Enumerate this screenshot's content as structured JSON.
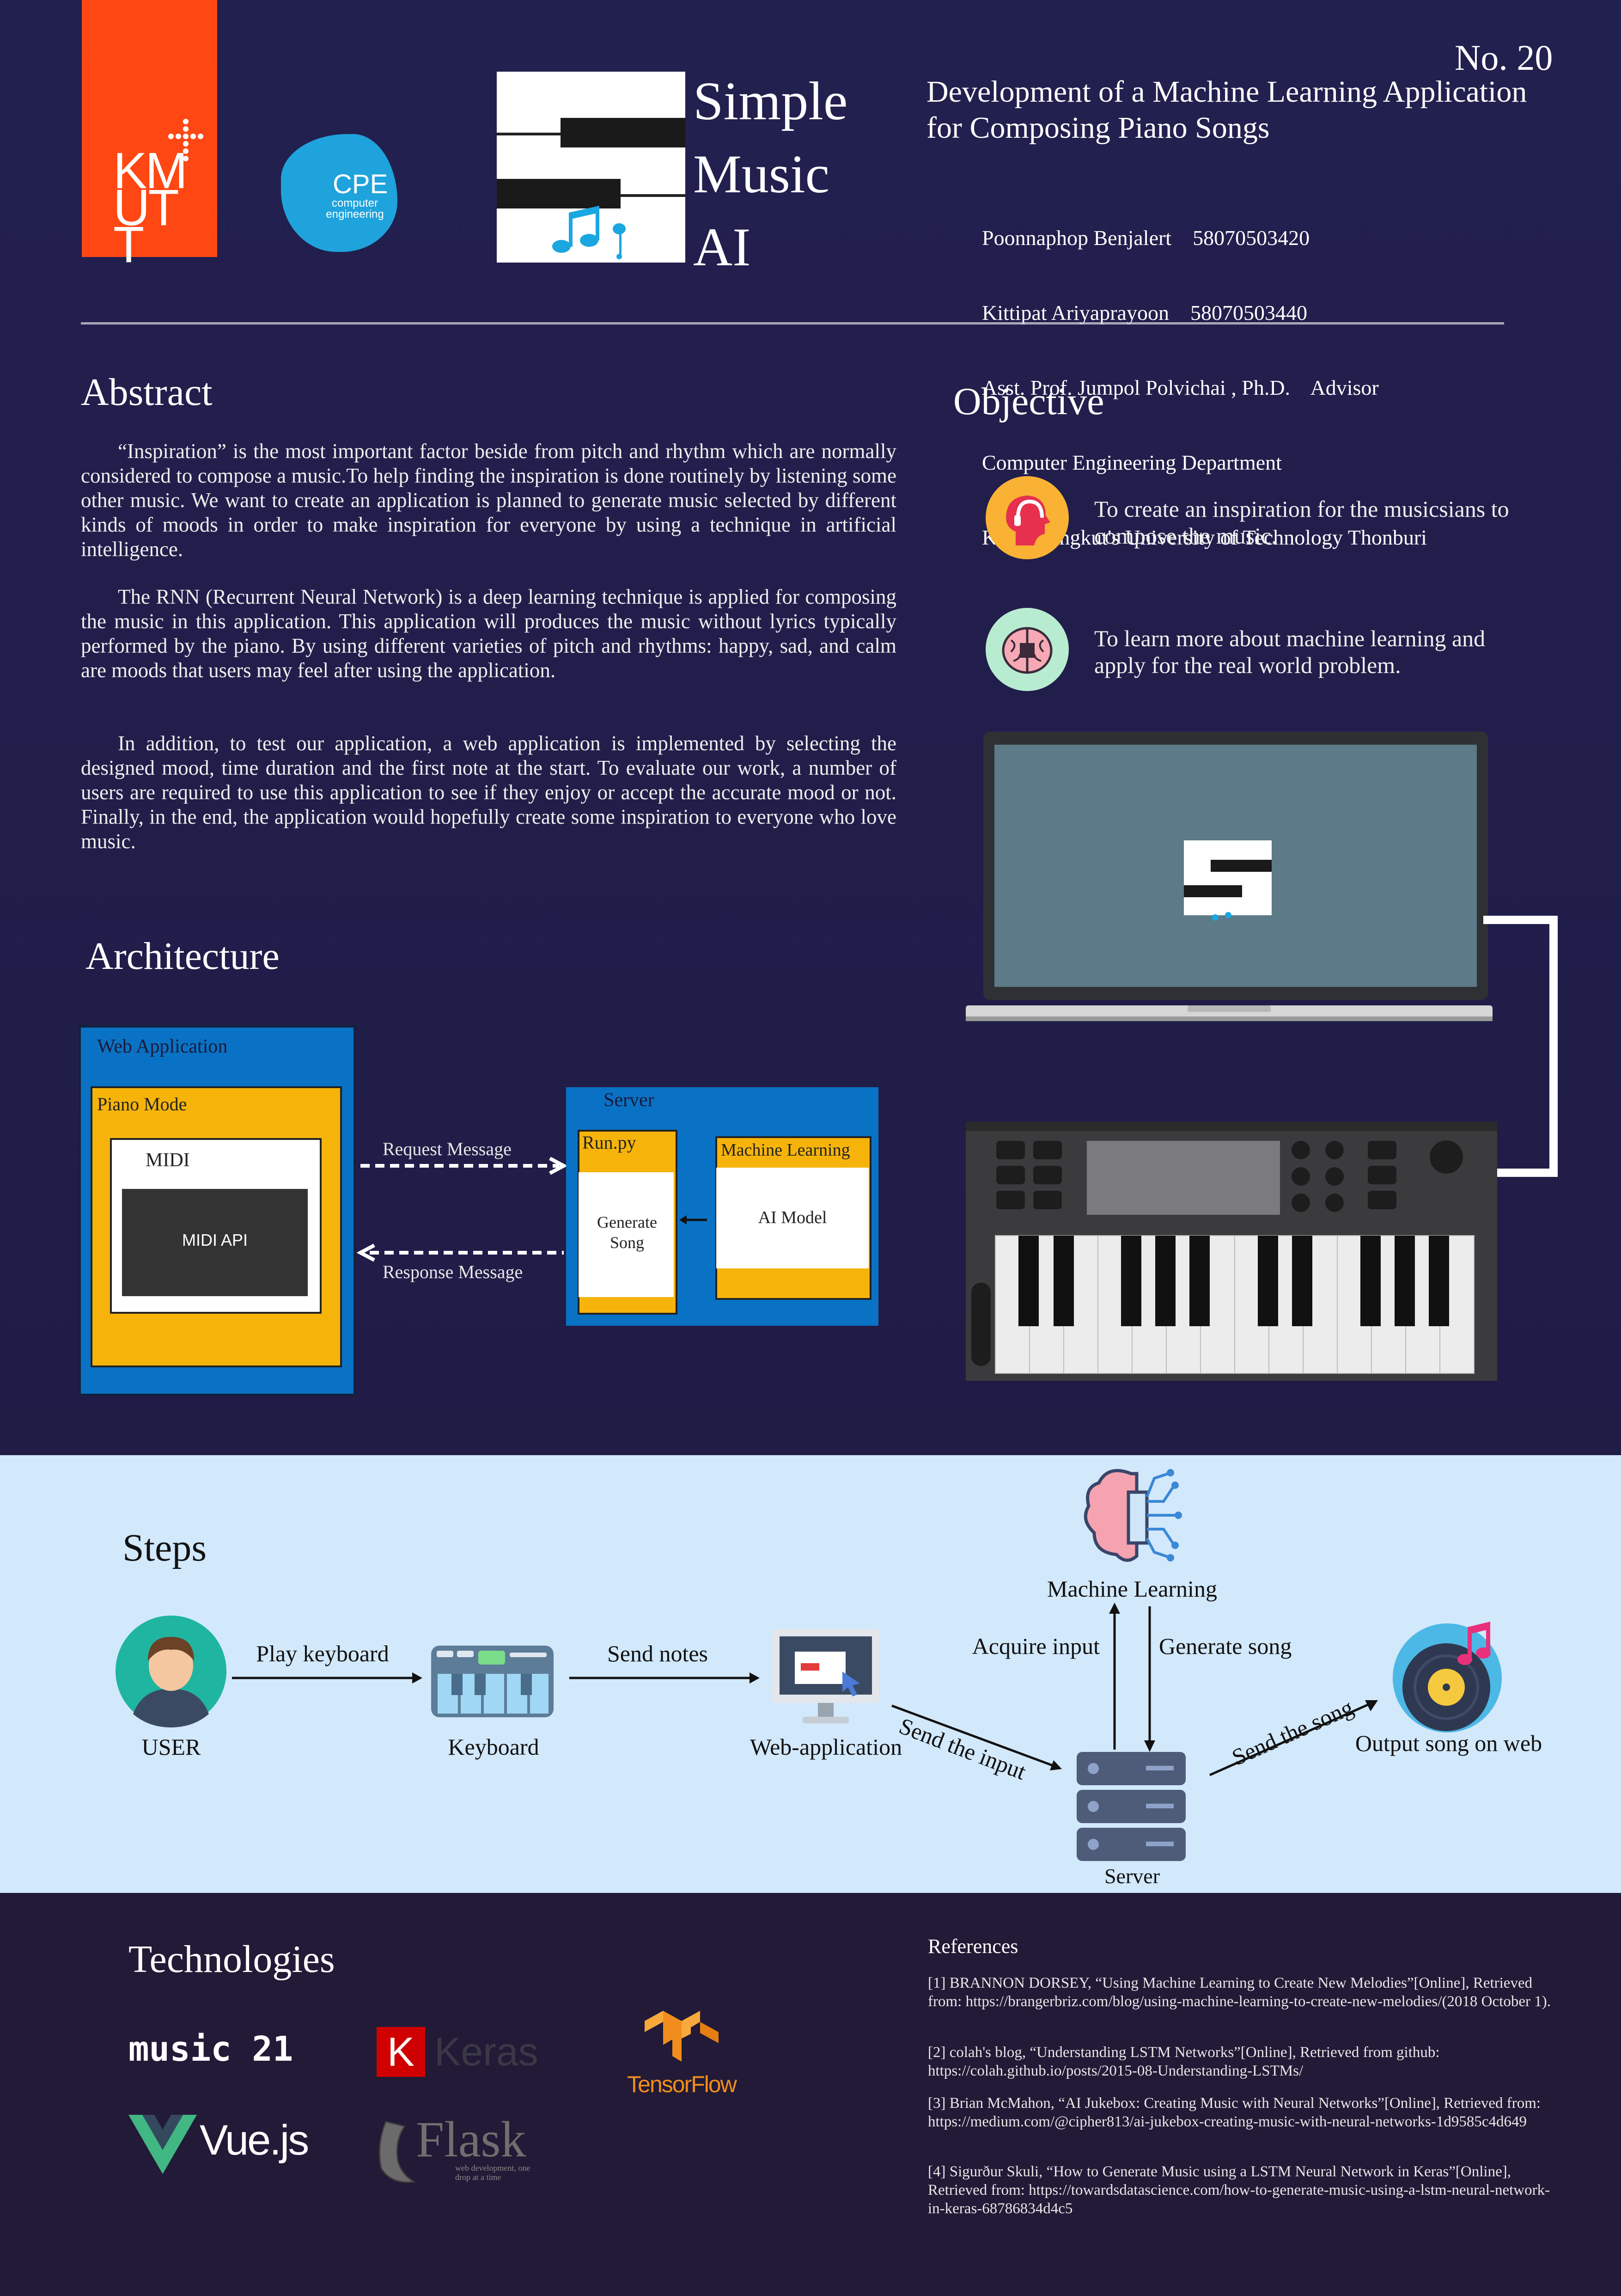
{
  "header": {
    "kmutt_logo_text": "KMUTT",
    "cpe_logo_text": "CPE",
    "cpe_logo_subtext": "computer engineering",
    "app_name": [
      "Simple",
      "Music",
      "AI"
    ],
    "poster_number": "No. 20",
    "project_title": "Development of a Machine Learning Application for Composing Piano Songs",
    "authors": [
      "Poonnaphop Benjalert    58070503420",
      "Kittipat Ariyaprayoon    58070503440",
      "Asst. Prof. Jumpol Polvichai , Ph.D.    Advisor",
      "Computer Engineering Department",
      "King Mongkut's University of Technology Thonburi"
    ]
  },
  "abstract": {
    "heading": "Abstract",
    "paragraphs": [
      "“Inspiration” is the most important factor beside from pitch and rhythm which are normally considered to compose a music.To help finding the inspiration is done routinely by listening some other music. We want to create an application is planned to generate music selected by different kinds of moods in order to make inspiration for everyone by using a technique in artificial intelligence.",
      "The RNN (Recurrent Neural Network) is a deep learning technique is applied for composing the music in this application. This application will produces the music without lyrics typically performed by the piano. By using different varieties of pitch and rhythms: happy, sad, and calm are moods that users may feel after using the application.",
      "In addition, to test our application, a web application is implemented by selecting the designed mood, time duration and the first note at the start. To evaluate our work, a number of users are required to use this application to see if they enjoy or accept the accurate mood or not. Finally, in the end, the application would hopefully create some inspiration to everyone who love music."
    ]
  },
  "objective": {
    "heading": "Objective",
    "items": [
      {
        "icon": "head-with-headphones-icon",
        "text": "To create an inspiration for the musicsians to compose the music."
      },
      {
        "icon": "brain-circuit-icon",
        "text": "To learn more about machine learning and apply for the real world problem."
      }
    ]
  },
  "architecture": {
    "heading": "Architecture",
    "web_application": "Web Application",
    "piano_mode": "Piano Mode",
    "midi": "MIDI",
    "midi_api": "MIDI API",
    "request_message": "Request Message",
    "response_message": "Response Message",
    "server": "Server",
    "run_py": "Run.py",
    "generate_song": "Generate Song",
    "machine_learning": "Machine Learning",
    "ai_model": "AI Model"
  },
  "steps": {
    "heading": "Steps",
    "user": "USER",
    "play_keyboard": "Play keyboard",
    "keyboard": "Keyboard",
    "send_notes": "Send notes",
    "web_application": "Web-application",
    "send_the_input": "Send the input",
    "machine_learning": "Machine Learning",
    "acquire_input": "Acquire input",
    "generate_song": "Generate song",
    "server": "Server",
    "send_the_song": "Send the song",
    "output_song": "Output song on web"
  },
  "technologies": {
    "heading": "Technologies",
    "music21": "music 21",
    "keras": "Keras",
    "keras_k": "K",
    "tensorflow": "TensorFlow",
    "vue": "Vue.js",
    "flask": "Flask",
    "flask_tagline": "web development, one drop at a time"
  },
  "references": {
    "heading": "References",
    "items": [
      "[1] BRANNON DORSEY, “Using Machine Learning to Create New Melodies”[Online], Retrieved from: https://brangerbriz.com/blog/using-machine-learning-to-create-new-melodies/(2018 October 1).",
      "[2] colah's blog, “Understanding LSTM Networks”[Online], Retrieved from github: https://colah.github.io/posts/2015-08-Understanding-LSTMs/",
      "[3] Brian McMahon, “AI Jukebox: Creating Music with Neural Networks”[Online], Retrieved from: https://medium.com/@cipher813/ai-jukebox-creating-music-with-neural-networks-1d9585c4d649",
      "[4] Sigurður Skuli, “How to Generate Music using a LSTM Neural Network in Keras”[Online], Retrieved from: https://towardsdatascience.com/how-to-generate-music-using-a-lstm-neural-network-in-keras-68786834d4c5"
    ]
  },
  "colors": {
    "background": "#22204f",
    "kmutt_orange": "#fe4713",
    "cpe_blue": "#1ea3dc",
    "arch_blue": "#0a72c4",
    "arch_yellow": "#f6b40b",
    "steps_band": "#d2e8fb",
    "footer": "#221a36"
  }
}
